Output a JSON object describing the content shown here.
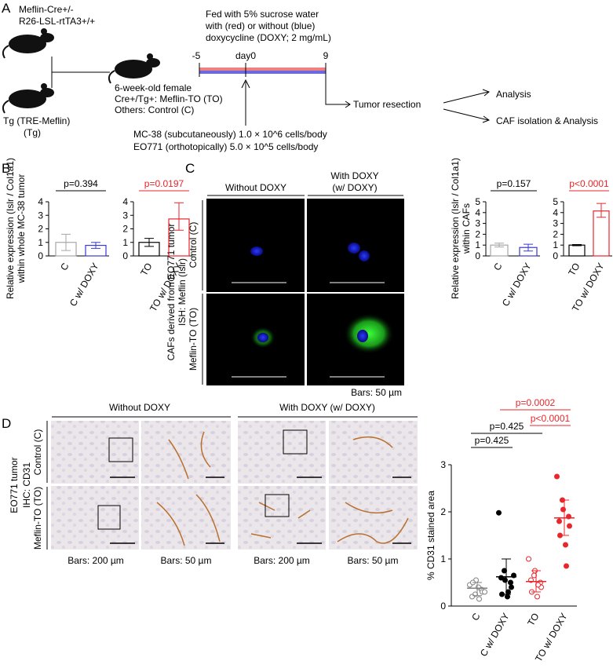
{
  "panel_a": {
    "label": "A",
    "mouse1_line1": "Meflin-Cre+/-",
    "mouse1_line2": "R26-LSL-rtTA3+/+",
    "mouse2_line1": "Tg (TRE-Meflin)",
    "mouse2_line2": "(Tg)",
    "offspring_line1": "6-week-old female",
    "offspring_line2": "Cre+/Tg+: Meflin-TO (TO)",
    "offspring_line3": "Others: Control (C)",
    "feed_line1": "Fed with 5% sucrose water",
    "feed_line2": "with (red) or without (blue)",
    "feed_line3": "doxycycline (DOXY; 2 mg/mL)",
    "day_start": "-5",
    "day_zero": "day0",
    "day_end": "9",
    "resection": "Tumor resection",
    "outcome1": "Analysis",
    "outcome2": "CAF isolation & Analysis",
    "cells1": "MC-38 (subcutaneously) 1.0 × 10^6 cells/body",
    "cells2": "EO771 (orthotopically) 5.0 × 10^5 cells/body"
  },
  "panel_b": {
    "label": "B",
    "ylabel_line1": "Relative expression (Islr / Col1a1)",
    "ylabel_line2": "within whole MC-38 tumor",
    "charts": [
      {
        "type": "bar",
        "categories": [
          "C",
          "C w/ DOXY"
        ],
        "values": [
          1.0,
          0.78
        ],
        "lower": [
          0.4,
          0.56
        ],
        "upper": [
          1.6,
          1.0
        ],
        "colors": [
          "#a6a6a6",
          "#3a3ad0"
        ],
        "ylim": [
          0,
          4
        ],
        "yticks": [
          0,
          1,
          2,
          3,
          4
        ],
        "p_value": "p=0.394",
        "p_color": "#000000"
      },
      {
        "type": "bar",
        "categories": [
          "TO",
          "TO w/ DOXY"
        ],
        "values": [
          1.0,
          2.73
        ],
        "lower": [
          0.7,
          1.9
        ],
        "upper": [
          1.3,
          3.93
        ],
        "colors": [
          "#000000",
          "#e8262b"
        ],
        "ylim": [
          0,
          4
        ],
        "yticks": [
          0,
          1,
          2,
          3,
          4
        ],
        "p_value": "p=0.0197",
        "p_color": "#e8262b"
      }
    ]
  },
  "panel_c": {
    "label": "C",
    "col1": "Without DOXY",
    "col2_line1": "With DOXY",
    "col2_line2": "(w/ DOXY)",
    "row1": "Control (C)",
    "row2": "Meflin-TO (TO)",
    "side_line1": "CAFs derived from EO771 tumor",
    "side_line2": "ISH: Meflin (Islr)",
    "scale": "Bars: 50 µm",
    "ylabel_line1": "Relative expression (Islr / Col1a1)",
    "ylabel_line2": "within CAFs",
    "charts": [
      {
        "type": "bar",
        "categories": [
          "C",
          "C w/ DOXY"
        ],
        "values": [
          1.0,
          0.78
        ],
        "lower": [
          0.82,
          0.45
        ],
        "upper": [
          1.18,
          1.08
        ],
        "colors": [
          "#a6a6a6",
          "#3a3ad0"
        ],
        "ylim": [
          0,
          5
        ],
        "yticks": [
          0,
          1,
          2,
          3,
          4,
          5
        ],
        "p_value": "p=0.157",
        "p_color": "#000000"
      },
      {
        "type": "bar",
        "categories": [
          "TO",
          "TO w/ DOXY"
        ],
        "values": [
          1.0,
          4.15
        ],
        "lower": [
          0.94,
          3.57
        ],
        "upper": [
          1.05,
          4.85
        ],
        "colors": [
          "#000000",
          "#e8262b"
        ],
        "ylim": [
          0,
          5
        ],
        "yticks": [
          0,
          1,
          2,
          3,
          4,
          5
        ],
        "p_value": "p<0.0001",
        "p_color": "#e8262b"
      }
    ]
  },
  "panel_d": {
    "label": "D",
    "col1": "Without DOXY",
    "col2": "With DOXY (w/ DOXY)",
    "row1": "Control (C)",
    "row2": "Meflin-TO (TO)",
    "side_line1": "EO771 tumor",
    "side_line2": "IHC: CD31",
    "scale_low": "Bars: 200 µm",
    "scale_high": "Bars: 50 µm",
    "scale_low_2": "Bars: 200 µm",
    "scale_high_2": "Bars: 50 µm",
    "chart": {
      "type": "scatter",
      "ylabel": "% CD31 stained area",
      "categories": [
        "C",
        "C w/ DOXY",
        "TO",
        "TO w/ DOXY"
      ],
      "colors": [
        "#808080",
        "#000000",
        "#e8262b",
        "#e8262b"
      ],
      "filled": [
        false,
        true,
        false,
        true
      ],
      "values": [
        [
          0.45,
          0.25,
          0.55,
          0.35,
          0.3,
          0.2,
          0.5,
          0.4,
          0.15,
          0.3
        ],
        [
          1.98,
          0.75,
          0.55,
          0.5,
          0.4,
          0.6,
          0.25,
          0.2,
          0.3,
          0.65
        ],
        [
          1.0,
          0.65,
          0.75,
          0.5,
          0.4,
          0.55,
          0.3,
          0.2,
          0.45
        ],
        [
          2.75,
          2.25,
          2.05,
          1.9,
          1.7,
          1.8,
          1.5,
          1.3,
          0.85
        ]
      ],
      "means": [
        0.38,
        0.62,
        0.52,
        1.87
      ],
      "sd_low": [
        0.22,
        0.25,
        0.3,
        1.5
      ],
      "sd_high": [
        0.5,
        1.0,
        0.75,
        2.25
      ],
      "ylim": [
        0,
        3
      ],
      "yticks": [
        0,
        1,
        2,
        3
      ],
      "brackets": [
        {
          "label": "p=0.425",
          "color": "#000000"
        },
        {
          "label": "p=0.425",
          "color": "#000000"
        },
        {
          "label": "p=0.0002",
          "color": "#e8262b"
        },
        {
          "label": "p<0.0001",
          "color": "#e8262b"
        }
      ]
    }
  }
}
